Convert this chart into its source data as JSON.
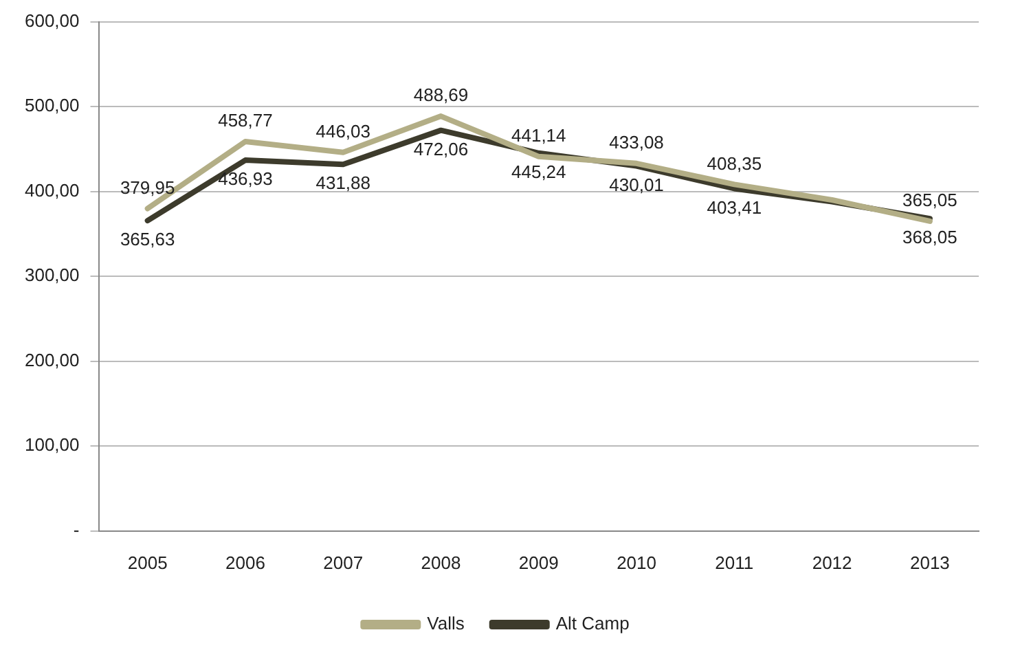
{
  "chart_data": {
    "type": "line",
    "categories": [
      "2005",
      "2006",
      "2007",
      "2008",
      "2009",
      "2010",
      "2011",
      "2012",
      "2013"
    ],
    "series": [
      {
        "name": "Valls",
        "color": "#b3ae86",
        "values": [
          379.95,
          458.77,
          446.03,
          488.69,
          441.14,
          433.08,
          408.35,
          390,
          365.05
        ],
        "value_labels": [
          "379,95",
          "458,77",
          "446,03",
          "488,69",
          "441,14",
          "433,08",
          "408,35",
          null,
          "365,05"
        ]
      },
      {
        "name": "Alt Camp",
        "color": "#3d3b2c",
        "values": [
          365.63,
          436.93,
          431.88,
          472.06,
          445.24,
          430.01,
          403.41,
          388,
          368.05
        ],
        "value_labels": [
          "365,63",
          "436,93",
          "431,88",
          "472,06",
          "445,24",
          "430,01",
          "403,41",
          null,
          "368,05"
        ]
      }
    ],
    "ylim": [
      0,
      600
    ],
    "yticks": [
      {
        "value": 0,
        "label": "-"
      },
      {
        "value": 100,
        "label": "100,00"
      },
      {
        "value": 200,
        "label": "200,00"
      },
      {
        "value": 300,
        "label": "300,00"
      },
      {
        "value": 400,
        "label": "400,00"
      },
      {
        "value": 500,
        "label": "500,00"
      },
      {
        "value": 600,
        "label": "600,00"
      }
    ],
    "grid": "y",
    "legend": "bottom",
    "marker": "none",
    "line_style": "solid"
  }
}
